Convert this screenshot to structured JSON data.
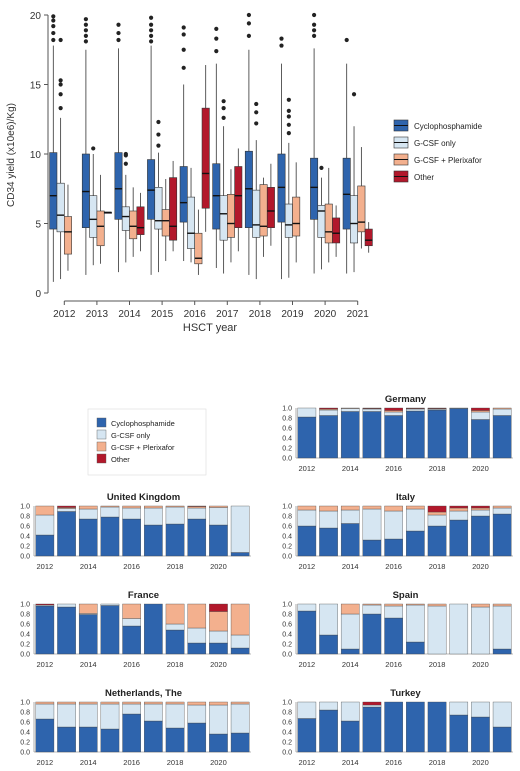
{
  "colors": {
    "cyclophosphamide": "#2e64ad",
    "gcsf_only": "#d6e6f2",
    "gcsf_plerixafor": "#f3b08e",
    "other": "#b2182b",
    "outline": "#333333",
    "axis": "#555555"
  },
  "chart_data": [
    {
      "id": "boxplot",
      "type": "box",
      "title": "",
      "xlabel": "HSCT year",
      "ylabel": "CD34 yield (x10e6)/Kg)",
      "ylim": [
        0,
        20
      ],
      "yticks": [
        0,
        5,
        10,
        15,
        20
      ],
      "grid": false,
      "legend_position": "right",
      "categories": [
        "2012",
        "2013",
        "2014",
        "2015",
        "2016",
        "2017",
        "2018",
        "2019",
        "2020",
        "2021"
      ],
      "series": [
        {
          "name": "Cyclophosphamide",
          "color_key": "cyclophosphamide",
          "boxes": [
            {
              "q1": 4.6,
              "median": 7.0,
              "q3": 10.1,
              "whislo": 0.8,
              "whishi": 17.8,
              "fliers": [
                18.2,
                18.7,
                19.2,
                19.6,
                19.9
              ]
            },
            {
              "q1": 4.7,
              "median": 7.3,
              "q3": 10.0,
              "whislo": 1.3,
              "whishi": 17.5,
              "fliers": [
                18.1,
                18.5,
                18.9,
                19.3,
                19.7
              ]
            },
            {
              "q1": 5.3,
              "median": 7.5,
              "q3": 10.1,
              "whislo": 1.5,
              "whishi": 17.6,
              "fliers": [
                18.2,
                18.7,
                19.3
              ]
            },
            {
              "q1": 5.3,
              "median": 7.4,
              "q3": 9.6,
              "whislo": 1.3,
              "whishi": 17.8,
              "fliers": [
                18.1,
                18.5,
                18.9,
                19.3,
                19.8
              ]
            },
            {
              "q1": 5.1,
              "median": 6.5,
              "q3": 9.1,
              "whislo": 2.3,
              "whishi": 15.0,
              "fliers": [
                16.2,
                17.5,
                18.6,
                19.1
              ]
            },
            {
              "q1": 4.6,
              "median": 7.0,
              "q3": 9.3,
              "whislo": 1.8,
              "whishi": 16.5,
              "fliers": [
                17.4,
                18.3,
                19.0
              ]
            },
            {
              "q1": 4.7,
              "median": 7.5,
              "q3": 10.2,
              "whislo": 1.3,
              "whishi": 17.5,
              "fliers": [
                18.5,
                19.4,
                20.0
              ]
            },
            {
              "q1": 5.1,
              "median": 7.6,
              "q3": 10.0,
              "whislo": 1.0,
              "whishi": 16.5,
              "fliers": [
                17.8,
                18.3
              ]
            },
            {
              "q1": 5.3,
              "median": 7.6,
              "q3": 9.7,
              "whislo": 1.4,
              "whishi": 17.6,
              "fliers": [
                18.5,
                18.9,
                19.3,
                20.0
              ]
            },
            {
              "q1": 4.6,
              "median": 7.1,
              "q3": 9.7,
              "whislo": 1.4,
              "whishi": 16.5,
              "fliers": [
                18.2
              ]
            }
          ]
        },
        {
          "name": "G-CSF only",
          "color_key": "gcsf_only",
          "boxes": [
            {
              "q1": 4.4,
              "median": 5.6,
              "q3": 7.9,
              "whislo": 1.0,
              "whishi": 12.6,
              "fliers": [
                13.3,
                14.3,
                15.0,
                15.3,
                18.2
              ]
            },
            {
              "q1": 4.0,
              "median": 5.3,
              "q3": 7.0,
              "whislo": 2.0,
              "whishi": 10.0,
              "fliers": [
                10.4
              ]
            },
            {
              "q1": 4.5,
              "median": 5.5,
              "q3": 6.2,
              "whislo": 2.2,
              "whishi": 8.5,
              "fliers": [
                9.3,
                9.9,
                10.0
              ]
            },
            {
              "q1": 4.6,
              "median": 5.2,
              "q3": 7.6,
              "whislo": 1.5,
              "whishi": 10.1,
              "fliers": [
                10.6,
                11.4,
                12.3
              ]
            },
            {
              "q1": 3.2,
              "median": 4.3,
              "q3": 6.9,
              "whislo": 2.2,
              "whishi": 9.0,
              "fliers": []
            },
            {
              "q1": 3.8,
              "median": 5.7,
              "q3": 7.0,
              "whislo": 1.4,
              "whishi": 12.0,
              "fliers": [
                12.6,
                13.3,
                13.8
              ]
            },
            {
              "q1": 4.0,
              "median": 4.9,
              "q3": 7.4,
              "whislo": 1.0,
              "whishi": 11.0,
              "fliers": [
                12.2,
                13.0,
                13.6
              ]
            },
            {
              "q1": 4.0,
              "median": 4.9,
              "q3": 6.4,
              "whislo": 1.1,
              "whishi": 10.8,
              "fliers": [
                11.5,
                12.1,
                12.7,
                13.1,
                13.9
              ]
            },
            {
              "q1": 4.0,
              "median": 5.9,
              "q3": 6.3,
              "whislo": 1.7,
              "whishi": 8.3,
              "fliers": [
                9.0
              ]
            },
            {
              "q1": 3.6,
              "median": 5.0,
              "q3": 7.0,
              "whislo": 1.5,
              "whishi": 12.0,
              "fliers": [
                14.3
              ]
            }
          ]
        },
        {
          "name": "G-CSF + Plerixafor",
          "color_key": "gcsf_plerixafor",
          "boxes": [
            {
              "q1": 2.8,
              "median": 4.4,
              "q3": 5.5,
              "whislo": 1.6,
              "whishi": 7.8,
              "fliers": []
            },
            {
              "q1": 3.4,
              "median": 4.8,
              "q3": 5.9,
              "whislo": 2.1,
              "whishi": 8.5,
              "fliers": []
            },
            {
              "q1": 3.9,
              "median": 4.8,
              "q3": 5.9,
              "whislo": 2.6,
              "whishi": 7.6,
              "fliers": []
            },
            {
              "q1": 4.1,
              "median": 5.2,
              "q3": 6.0,
              "whislo": 2.3,
              "whishi": 8.2,
              "fliers": []
            },
            {
              "q1": 2.1,
              "median": 2.5,
              "q3": 4.3,
              "whislo": 1.3,
              "whishi": 6.0,
              "fliers": []
            },
            {
              "q1": 4.0,
              "median": 5.0,
              "q3": 7.1,
              "whislo": 2.2,
              "whishi": 8.9,
              "fliers": []
            },
            {
              "q1": 4.1,
              "median": 4.8,
              "q3": 7.8,
              "whislo": 2.6,
              "whishi": 8.3,
              "fliers": []
            },
            {
              "q1": 4.1,
              "median": 5.0,
              "q3": 6.9,
              "whislo": 2.2,
              "whishi": 9.4,
              "fliers": []
            },
            {
              "q1": 3.6,
              "median": 4.4,
              "q3": 6.4,
              "whislo": 2.2,
              "whishi": 9.0,
              "fliers": []
            },
            {
              "q1": 4.4,
              "median": 5.1,
              "q3": 7.7,
              "whislo": 3.2,
              "whishi": 10.5,
              "fliers": []
            }
          ]
        },
        {
          "name": "Other",
          "color_key": "other",
          "boxes": [
            null,
            {
              "q1": 5.8,
              "median": 5.8,
              "q3": 5.8,
              "whislo": 5.8,
              "whishi": 5.8,
              "fliers": []
            },
            {
              "q1": 4.2,
              "median": 4.7,
              "q3": 6.2,
              "whislo": 3.0,
              "whishi": 7.2,
              "fliers": []
            },
            {
              "q1": 3.8,
              "median": 4.8,
              "q3": 8.3,
              "whislo": 3.0,
              "whishi": 9.5,
              "fliers": []
            },
            {
              "q1": 6.1,
              "median": 8.6,
              "q3": 13.3,
              "whislo": 4.4,
              "whishi": 16.4,
              "fliers": []
            },
            {
              "q1": 4.7,
              "median": 7.0,
              "q3": 9.1,
              "whislo": 3.0,
              "whishi": 10.4,
              "fliers": []
            },
            {
              "q1": 4.7,
              "median": 5.9,
              "q3": 7.6,
              "whislo": 3.4,
              "whishi": 9.3,
              "fliers": []
            },
            null,
            {
              "q1": 3.6,
              "median": 4.3,
              "q3": 5.4,
              "whislo": 2.6,
              "whishi": 6.3,
              "fliers": []
            },
            {
              "q1": 3.4,
              "median": 3.8,
              "q3": 4.6,
              "whislo": 2.9,
              "whishi": 5.1,
              "fliers": []
            }
          ]
        }
      ]
    },
    {
      "id": "countries",
      "type": "stacked-bar",
      "title": "",
      "ylim": [
        0,
        1
      ],
      "yticks": [
        "0.0",
        "0.2",
        "0.4",
        "0.6",
        "0.8",
        "1.0"
      ],
      "xticks": [
        "2012",
        "2014",
        "2016",
        "2018",
        "2020"
      ],
      "categories": [
        "2012",
        "2013",
        "2014",
        "2015",
        "2016",
        "2017",
        "2018",
        "2019",
        "2020",
        "2021"
      ],
      "series_names": [
        "Cyclophosphamide",
        "G-CSF only",
        "G-CSF + Plerixafor",
        "Other"
      ],
      "legend_position": "top-left",
      "panels": [
        {
          "name": "Germany",
          "values": [
            [
              0.82,
              0.18,
              0,
              0
            ],
            [
              0.85,
              0.11,
              0.02,
              0.02
            ],
            [
              0.93,
              0.06,
              0.01,
              0
            ],
            [
              0.93,
              0.05,
              0.01,
              0.01
            ],
            [
              0.85,
              0.07,
              0.03,
              0.05
            ],
            [
              0.94,
              0.04,
              0.01,
              0.01
            ],
            [
              0.96,
              0.02,
              0.01,
              0.01
            ],
            [
              0.99,
              0.01,
              0,
              0
            ],
            [
              0.77,
              0.15,
              0.03,
              0.05
            ],
            [
              0.85,
              0.13,
              0.02,
              0
            ]
          ]
        },
        {
          "name": "United Kingdom",
          "values": [
            [
              0.42,
              0.4,
              0.18,
              0
            ],
            [
              0.89,
              0.06,
              0.02,
              0.03
            ],
            [
              0.74,
              0.2,
              0.06,
              0
            ],
            [
              0.78,
              0.2,
              0.02,
              0
            ],
            [
              0.74,
              0.22,
              0.04,
              0
            ],
            [
              0.62,
              0.34,
              0.04,
              0
            ],
            [
              0.64,
              0.34,
              0.02,
              0
            ],
            [
              0.74,
              0.22,
              0.03,
              0.01
            ],
            [
              0.62,
              0.35,
              0.03,
              0
            ],
            [
              0.07,
              0.93,
              0,
              0
            ]
          ]
        },
        {
          "name": "Italy",
          "values": [
            [
              0.6,
              0.32,
              0.08,
              0
            ],
            [
              0.56,
              0.34,
              0.1,
              0
            ],
            [
              0.65,
              0.27,
              0.08,
              0
            ],
            [
              0.32,
              0.62,
              0.06,
              0
            ],
            [
              0.34,
              0.56,
              0.1,
              0
            ],
            [
              0.5,
              0.44,
              0.06,
              0
            ],
            [
              0.6,
              0.22,
              0.06,
              0.12
            ],
            [
              0.72,
              0.18,
              0.06,
              0.04
            ],
            [
              0.8,
              0.12,
              0.04,
              0.04
            ],
            [
              0.84,
              0.12,
              0.04,
              0
            ]
          ]
        },
        {
          "name": "France",
          "values": [
            [
              0.96,
              0.02,
              0,
              0.02
            ],
            [
              0.94,
              0.06,
              0,
              0
            ],
            [
              0.79,
              0.02,
              0.19,
              0
            ],
            [
              0.97,
              0.03,
              0,
              0
            ],
            [
              0.56,
              0.15,
              0.29,
              0
            ],
            [
              1.0,
              0,
              0,
              0
            ],
            [
              0.48,
              0.12,
              0.4,
              0
            ],
            [
              0.22,
              0.3,
              0.48,
              0
            ],
            [
              0.22,
              0.24,
              0.39,
              0.15
            ],
            [
              0.12,
              0.26,
              0.62,
              0
            ]
          ]
        },
        {
          "name": "Spain",
          "values": [
            [
              0.86,
              0.14,
              0,
              0
            ],
            [
              0.38,
              0.62,
              0,
              0
            ],
            [
              0.1,
              0.7,
              0.2,
              0
            ],
            [
              0.8,
              0.18,
              0.02,
              0
            ],
            [
              0.72,
              0.24,
              0.04,
              0
            ],
            [
              0.24,
              0.74,
              0.02,
              0
            ],
            [
              0,
              0.96,
              0.04,
              0
            ],
            [
              0,
              1.0,
              0,
              0
            ],
            [
              0,
              0.94,
              0.06,
              0
            ],
            [
              0.1,
              0.86,
              0.04,
              0
            ]
          ]
        },
        {
          "name": "Netherlands, The",
          "values": [
            [
              0.66,
              0.3,
              0.04,
              0
            ],
            [
              0.5,
              0.46,
              0.04,
              0
            ],
            [
              0.5,
              0.46,
              0.04,
              0
            ],
            [
              0.46,
              0.5,
              0.04,
              0
            ],
            [
              0.76,
              0.2,
              0.04,
              0
            ],
            [
              0.62,
              0.34,
              0.04,
              0
            ],
            [
              0.48,
              0.48,
              0.04,
              0
            ],
            [
              0.58,
              0.36,
              0.06,
              0
            ],
            [
              0.36,
              0.58,
              0.06,
              0
            ],
            [
              0.38,
              0.58,
              0.04,
              0
            ]
          ]
        },
        {
          "name": "Turkey",
          "values": [
            [
              0.67,
              0.33,
              0,
              0
            ],
            [
              0.84,
              0.16,
              0,
              0
            ],
            [
              0.62,
              0.38,
              0,
              0
            ],
            [
              0.9,
              0.04,
              0,
              0.06
            ],
            [
              1.0,
              0,
              0,
              0
            ],
            [
              1.0,
              0,
              0,
              0
            ],
            [
              1.0,
              0,
              0,
              0
            ],
            [
              0.74,
              0.26,
              0,
              0
            ],
            [
              0.7,
              0.3,
              0,
              0
            ],
            [
              0.5,
              0.5,
              0,
              0
            ]
          ]
        }
      ]
    }
  ]
}
